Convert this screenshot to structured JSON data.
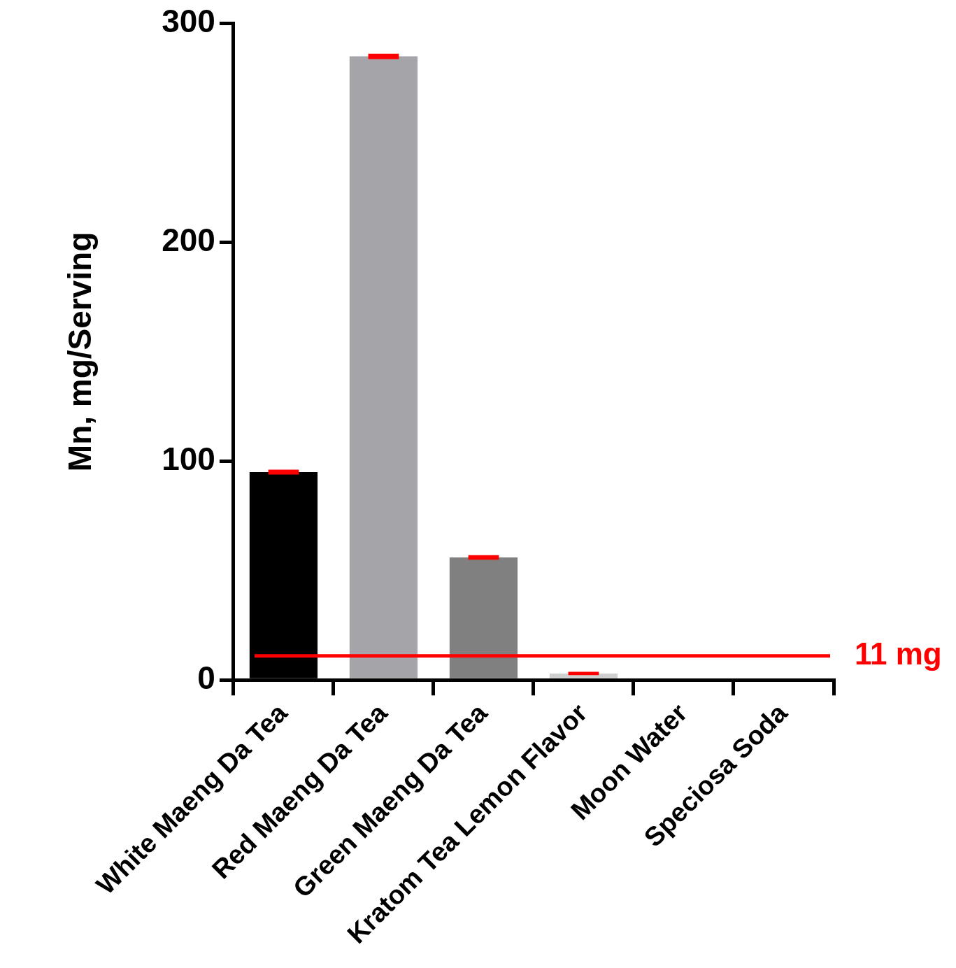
{
  "chart_data": {
    "type": "bar",
    "y_label": "Mn, mg/Serving",
    "categories": [
      "White Maeng Da Tea",
      "Red Maeng Da Tea",
      "Green Maeng Da Tea",
      "Kratom Tea Lemon Flavor",
      "Moon Water",
      "Speciosa Soda"
    ],
    "values": [
      95,
      285,
      56,
      3,
      0,
      0
    ],
    "errors": [
      0.5,
      0.6,
      0.4,
      0.1,
      0,
      0
    ],
    "colors": [
      "#000000",
      "#a5a5a9",
      "#808080",
      "#cfcfcf",
      "#bfbfbf",
      "#bfbfbf"
    ],
    "ylim": [
      0,
      300
    ],
    "yticks": [
      0,
      100,
      200,
      300
    ],
    "grid": false,
    "annotations": [
      {
        "y": 11,
        "text": "11 mg"
      }
    ]
  }
}
